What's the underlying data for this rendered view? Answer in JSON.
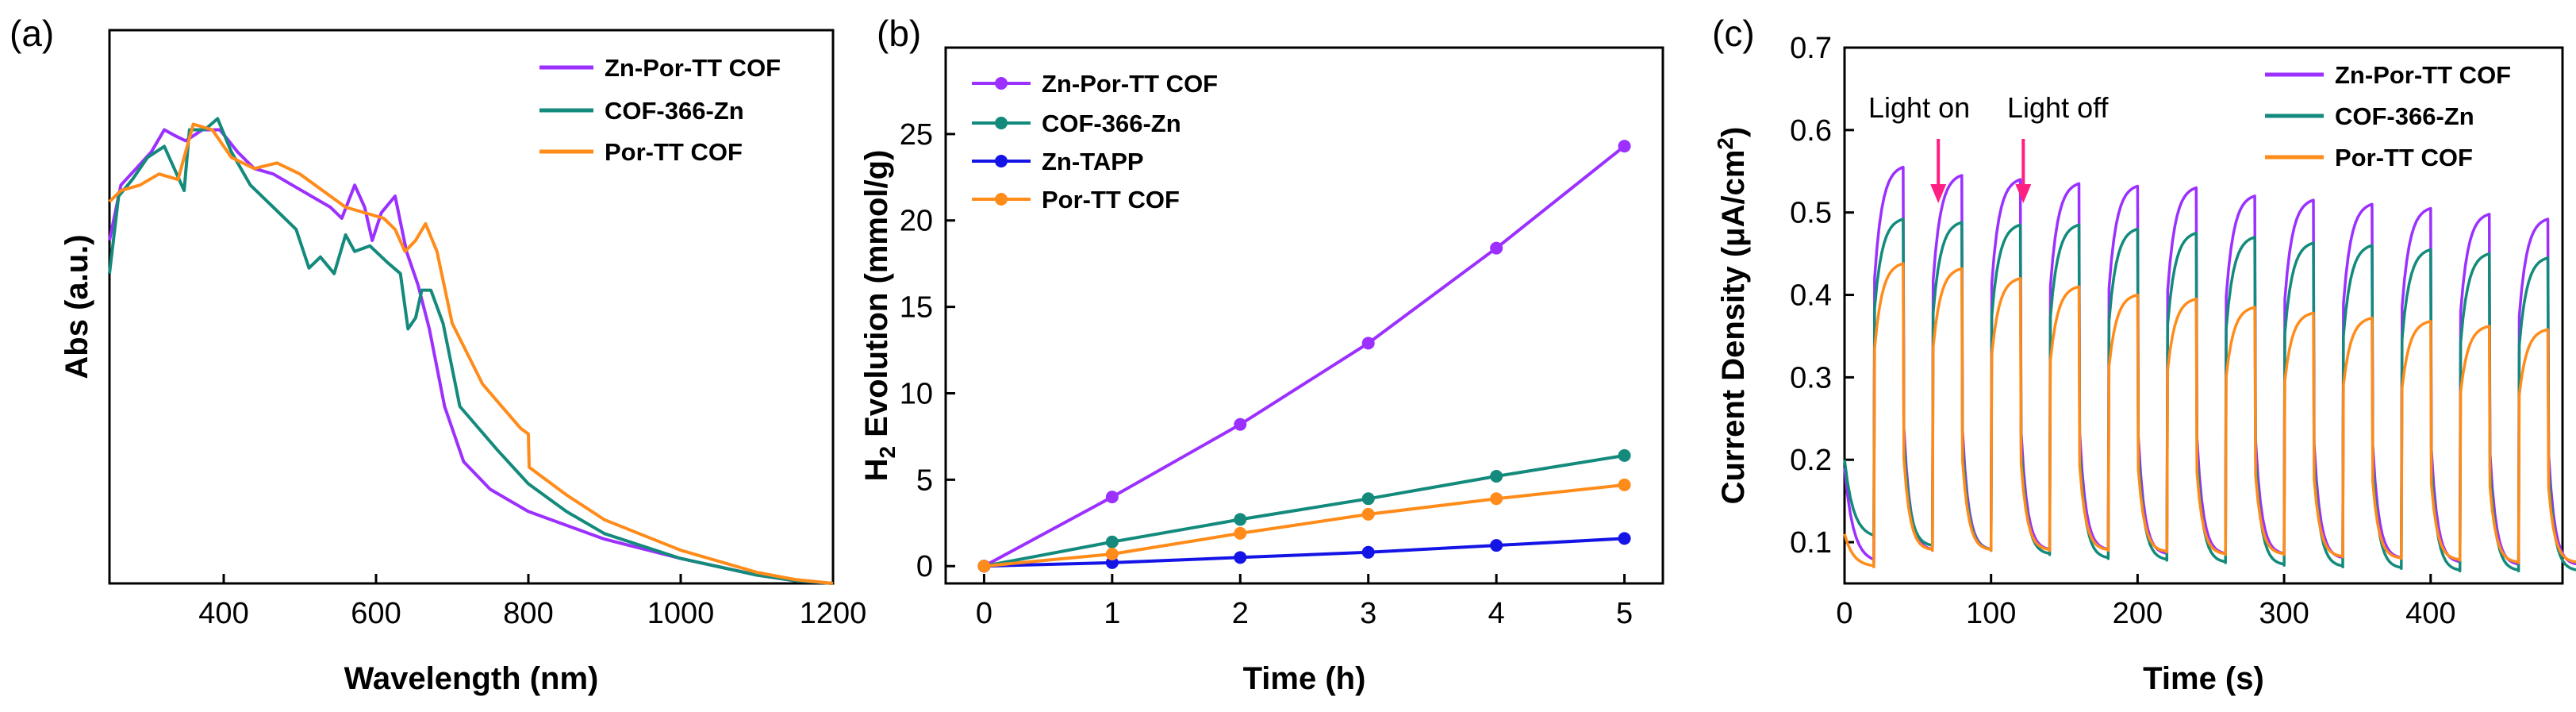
{
  "colors": {
    "purple": "#9b30ff",
    "teal": "#138a7c",
    "orange": "#ff8c1a",
    "blue": "#1414e6",
    "arrow": "#ff1e82"
  },
  "chart_data": [
    {
      "type": "line",
      "panel_label": "(a)",
      "title": "",
      "xlabel": "Wavelength (nm)",
      "ylabel": "Abs (a.u.)",
      "xlim": [
        250,
        1200
      ],
      "ylim": [
        0,
        1
      ],
      "xticks": [
        400,
        600,
        800,
        1000,
        1200
      ],
      "yticks": [],
      "legend_position": "top-right",
      "series": [
        {
          "name": "Zn-Por-TT COF",
          "color": "purple",
          "x": [
            250,
            265,
            285,
            305,
            322,
            335,
            350,
            372,
            395,
            418,
            440,
            465,
            490,
            515,
            540,
            555,
            572,
            585,
            595,
            607,
            625,
            640,
            655,
            670,
            690,
            715,
            750,
            800,
            900,
            1000,
            1100,
            1150,
            1200
          ],
          "y": [
            0.62,
            0.72,
            0.75,
            0.78,
            0.82,
            0.81,
            0.8,
            0.82,
            0.82,
            0.78,
            0.75,
            0.74,
            0.72,
            0.7,
            0.68,
            0.66,
            0.72,
            0.68,
            0.62,
            0.67,
            0.7,
            0.6,
            0.54,
            0.46,
            0.32,
            0.22,
            0.17,
            0.13,
            0.08,
            0.045,
            0.015,
            0.005,
            0.0
          ]
        },
        {
          "name": "COF-366-Zn",
          "color": "teal",
          "x": [
            250,
            262,
            280,
            300,
            322,
            348,
            355,
            375,
            392,
            410,
            435,
            465,
            495,
            512,
            527,
            545,
            560,
            572,
            592,
            615,
            632,
            642,
            652,
            660,
            672,
            688,
            710,
            760,
            800,
            850,
            900,
            1000,
            1100,
            1150,
            1200
          ],
          "y": [
            0.56,
            0.7,
            0.73,
            0.77,
            0.79,
            0.71,
            0.82,
            0.82,
            0.84,
            0.78,
            0.72,
            0.68,
            0.64,
            0.57,
            0.59,
            0.56,
            0.63,
            0.6,
            0.61,
            0.58,
            0.56,
            0.46,
            0.48,
            0.53,
            0.53,
            0.47,
            0.32,
            0.24,
            0.18,
            0.13,
            0.09,
            0.045,
            0.015,
            0.005,
            0.0
          ]
        },
        {
          "name": "Por-TT COF",
          "color": "orange",
          "x": [
            250,
            265,
            290,
            315,
            340,
            360,
            385,
            410,
            440,
            470,
            500,
            530,
            560,
            585,
            610,
            625,
            638,
            652,
            665,
            680,
            700,
            740,
            790,
            800,
            801,
            850,
            900,
            1000,
            1100,
            1150,
            1200
          ],
          "y": [
            0.69,
            0.71,
            0.72,
            0.74,
            0.73,
            0.83,
            0.82,
            0.77,
            0.75,
            0.76,
            0.74,
            0.71,
            0.68,
            0.67,
            0.66,
            0.64,
            0.6,
            0.62,
            0.65,
            0.6,
            0.47,
            0.36,
            0.28,
            0.27,
            0.21,
            0.16,
            0.115,
            0.06,
            0.02,
            0.007,
            0.0
          ]
        }
      ]
    },
    {
      "type": "line",
      "panel_label": "(b)",
      "title": "",
      "xlabel": "Time (h)",
      "ylabel_main": "H",
      "ylabel_sub": "2",
      "ylabel_rest": " Evolution (mmol/g)",
      "xlim": [
        -0.3,
        5.3
      ],
      "ylim": [
        -1,
        30
      ],
      "xticks": [
        0,
        1,
        2,
        3,
        4,
        5
      ],
      "yticks": [
        0,
        5,
        10,
        15,
        20,
        25
      ],
      "legend_position": "top-left",
      "x": [
        0,
        1,
        2,
        3,
        4,
        5
      ],
      "series": [
        {
          "name": "Zn-Por-TT COF",
          "color": "purple",
          "values": [
            0.0,
            4.0,
            8.2,
            12.9,
            18.4,
            24.3
          ]
        },
        {
          "name": "COF-366-Zn",
          "color": "teal",
          "values": [
            0.0,
            1.4,
            2.7,
            3.9,
            5.2,
            6.4
          ]
        },
        {
          "name": "Zn-TAPP",
          "color": "blue",
          "values": [
            0.0,
            0.2,
            0.5,
            0.8,
            1.2,
            1.6
          ]
        },
        {
          "name": "Por-TT COF",
          "color": "orange",
          "values": [
            0.0,
            0.7,
            1.9,
            3.0,
            3.9,
            4.7
          ]
        }
      ]
    },
    {
      "type": "line",
      "panel_label": "(c)",
      "title": "",
      "xlabel": "Time (s)",
      "ylabel_main": "Current Density (μA/cm",
      "ylabel_sup": "2",
      "ylabel_end": ")",
      "xlim": [
        0,
        490
      ],
      "ylim": [
        0.05,
        0.7
      ],
      "xticks": [
        0,
        100,
        200,
        300,
        400
      ],
      "yticks": [
        0.1,
        0.2,
        0.3,
        0.4,
        0.5,
        0.6,
        0.7
      ],
      "legend_position": "top-right",
      "annotations": [
        "Light on",
        "Light off"
      ],
      "annotation_x": [
        64,
        122
      ],
      "cycle": {
        "start": 20,
        "on_duration": 20,
        "off_duration": 20,
        "count": 12
      },
      "series": [
        {
          "name": "Zn-Por-TT COF",
          "color": "purple",
          "start": 0.19,
          "peaks": [
            0.555,
            0.545,
            0.54,
            0.535,
            0.532,
            0.53,
            0.52,
            0.515,
            0.51,
            0.505,
            0.498,
            0.492
          ],
          "lows": [
            0.075,
            0.09,
            0.09,
            0.09,
            0.09,
            0.085,
            0.085,
            0.085,
            0.08,
            0.08,
            0.075,
            0.072
          ]
        },
        {
          "name": "COF-366-Zn",
          "color": "teal",
          "start": 0.2,
          "peaks": [
            0.492,
            0.488,
            0.485,
            0.485,
            0.48,
            0.475,
            0.47,
            0.463,
            0.46,
            0.455,
            0.45,
            0.445
          ],
          "lows": [
            0.105,
            0.095,
            0.09,
            0.085,
            0.08,
            0.078,
            0.075,
            0.072,
            0.07,
            0.068,
            0.065,
            0.065
          ]
        },
        {
          "name": "Por-TT COF",
          "color": "orange",
          "start": 0.11,
          "peaks": [
            0.438,
            0.432,
            0.42,
            0.41,
            0.4,
            0.395,
            0.385,
            0.378,
            0.372,
            0.368,
            0.362,
            0.358
          ],
          "lows": [
            0.07,
            0.09,
            0.09,
            0.09,
            0.09,
            0.088,
            0.085,
            0.085,
            0.082,
            0.08,
            0.078,
            0.075
          ]
        }
      ]
    }
  ]
}
